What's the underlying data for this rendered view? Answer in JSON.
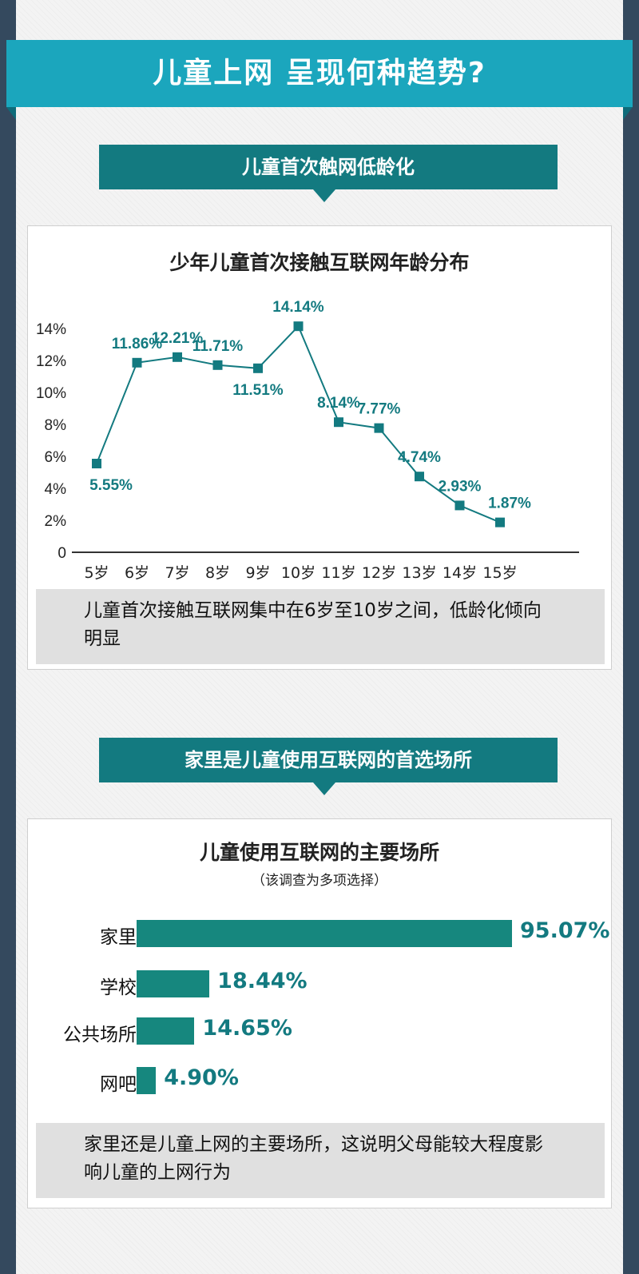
{
  "header": {
    "title": "儿童上网  呈现何种趋势?"
  },
  "section1": {
    "heading": "儿童首次触网低龄化",
    "chart_title": "少年儿童首次接触互联网年龄分布",
    "note": "儿童首次接触互联网集中在6岁至10岁之间，低龄化倾向明显"
  },
  "section2": {
    "heading": "家里是儿童使用互联网的首选场所",
    "chart_title": "儿童使用互联网的主要场所",
    "chart_subtitle": "（该调查为多项选择）",
    "note": "家里还是儿童上网的主要场所，这说明父母能较大程度影响儿童的上网行为"
  },
  "colors": {
    "accent": "#1ba6bd",
    "teal": "#137a80",
    "bar": "#16877e",
    "background": "#34495e"
  },
  "chart_data": [
    {
      "type": "line",
      "title": "少年儿童首次接触互联网年龄分布",
      "categories": [
        "5岁",
        "6岁",
        "7岁",
        "8岁",
        "9岁",
        "10岁",
        "11岁",
        "12岁",
        "13岁",
        "14岁",
        "15岁"
      ],
      "series": [
        {
          "values": [
            5.55,
            11.86,
            12.21,
            11.71,
            11.51,
            14.14,
            8.14,
            7.77,
            4.74,
            2.93,
            1.87
          ]
        }
      ],
      "data_labels": [
        "5.55%",
        "11.86%",
        "12.21%",
        "11.71%",
        "11.51%",
        "14.14%",
        "8.14%",
        "7.77%",
        "4.74%",
        "2.93%",
        "1.87%"
      ],
      "ylim": [
        0,
        14
      ],
      "yticks": [
        "0",
        "2%",
        "4%",
        "6%",
        "8%",
        "10%",
        "12%",
        "14%"
      ],
      "grid": false
    },
    {
      "type": "bar",
      "orientation": "horizontal",
      "title": "儿童使用互联网的主要场所",
      "subtitle": "（该调查为多项选择）",
      "categories": [
        "家里",
        "学校",
        "公共场所",
        "网吧"
      ],
      "values": [
        95.07,
        18.44,
        14.65,
        4.9
      ],
      "data_labels": [
        "95.07%",
        "18.44%",
        "14.65%",
        "4.90%"
      ]
    }
  ]
}
